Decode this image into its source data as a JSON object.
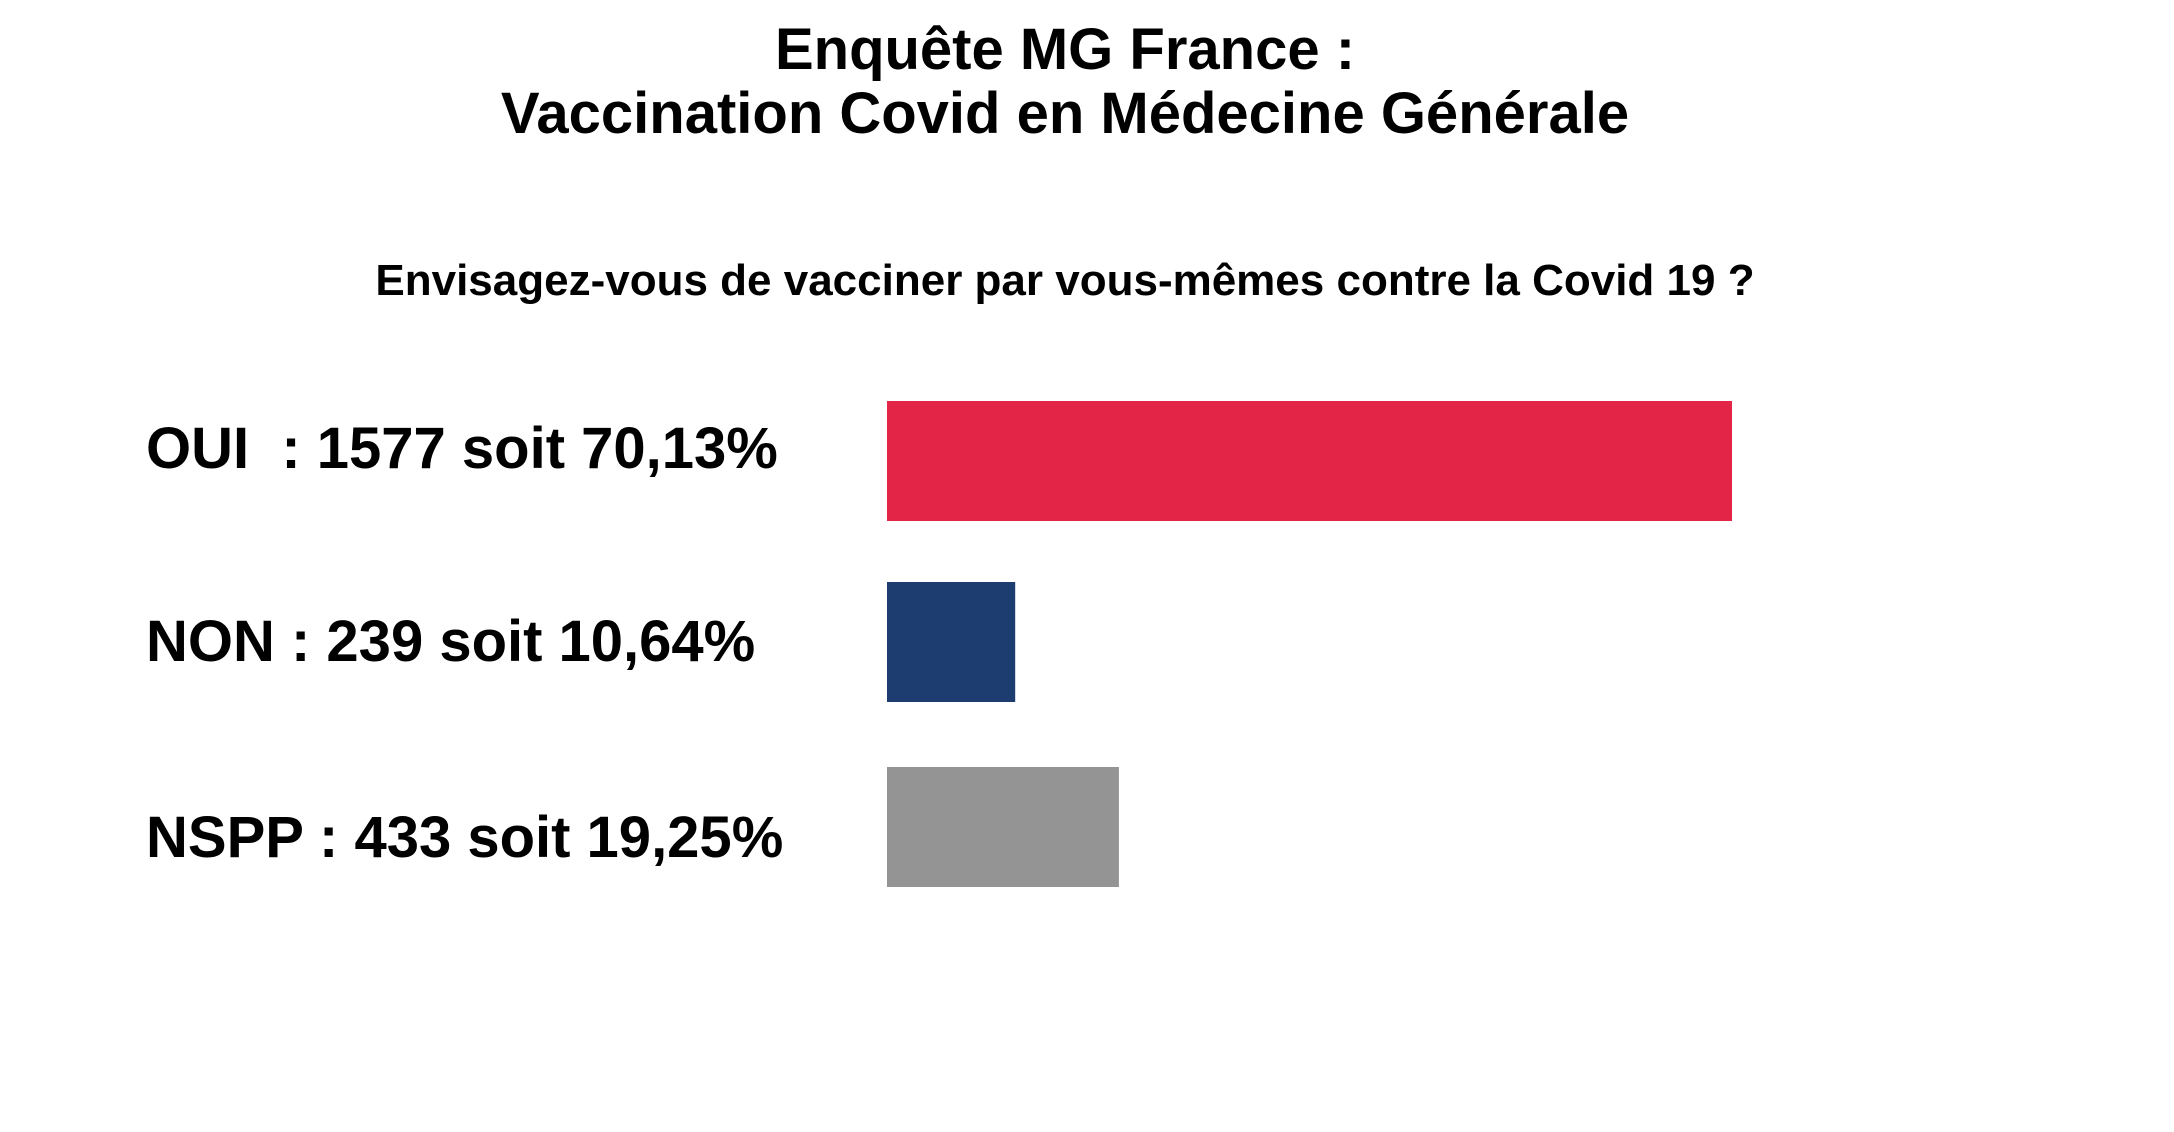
{
  "chart_data": {
    "type": "bar",
    "orientation": "horizontal",
    "title": "Enquête MG France :",
    "subtitle": "Vaccination Covid en Médecine Générale",
    "question": "Envisagez-vous de vacciner par vous-mêmes contre la Covid 19 ?",
    "xlim": [
      0,
      100
    ],
    "grid": false,
    "legend": "none",
    "categories": [
      "OUI",
      "NON",
      "NSPP"
    ],
    "labels": [
      "OUI  : 1577 soit 70,13%",
      "NON : 239 soit 10,64%",
      "NSPP : 433 soit 19,25%"
    ],
    "counts": [
      1577,
      239,
      433
    ],
    "values": [
      70.13,
      10.64,
      19.25
    ],
    "colors": [
      "#e32547",
      "#1d3c70",
      "#949494"
    ]
  }
}
